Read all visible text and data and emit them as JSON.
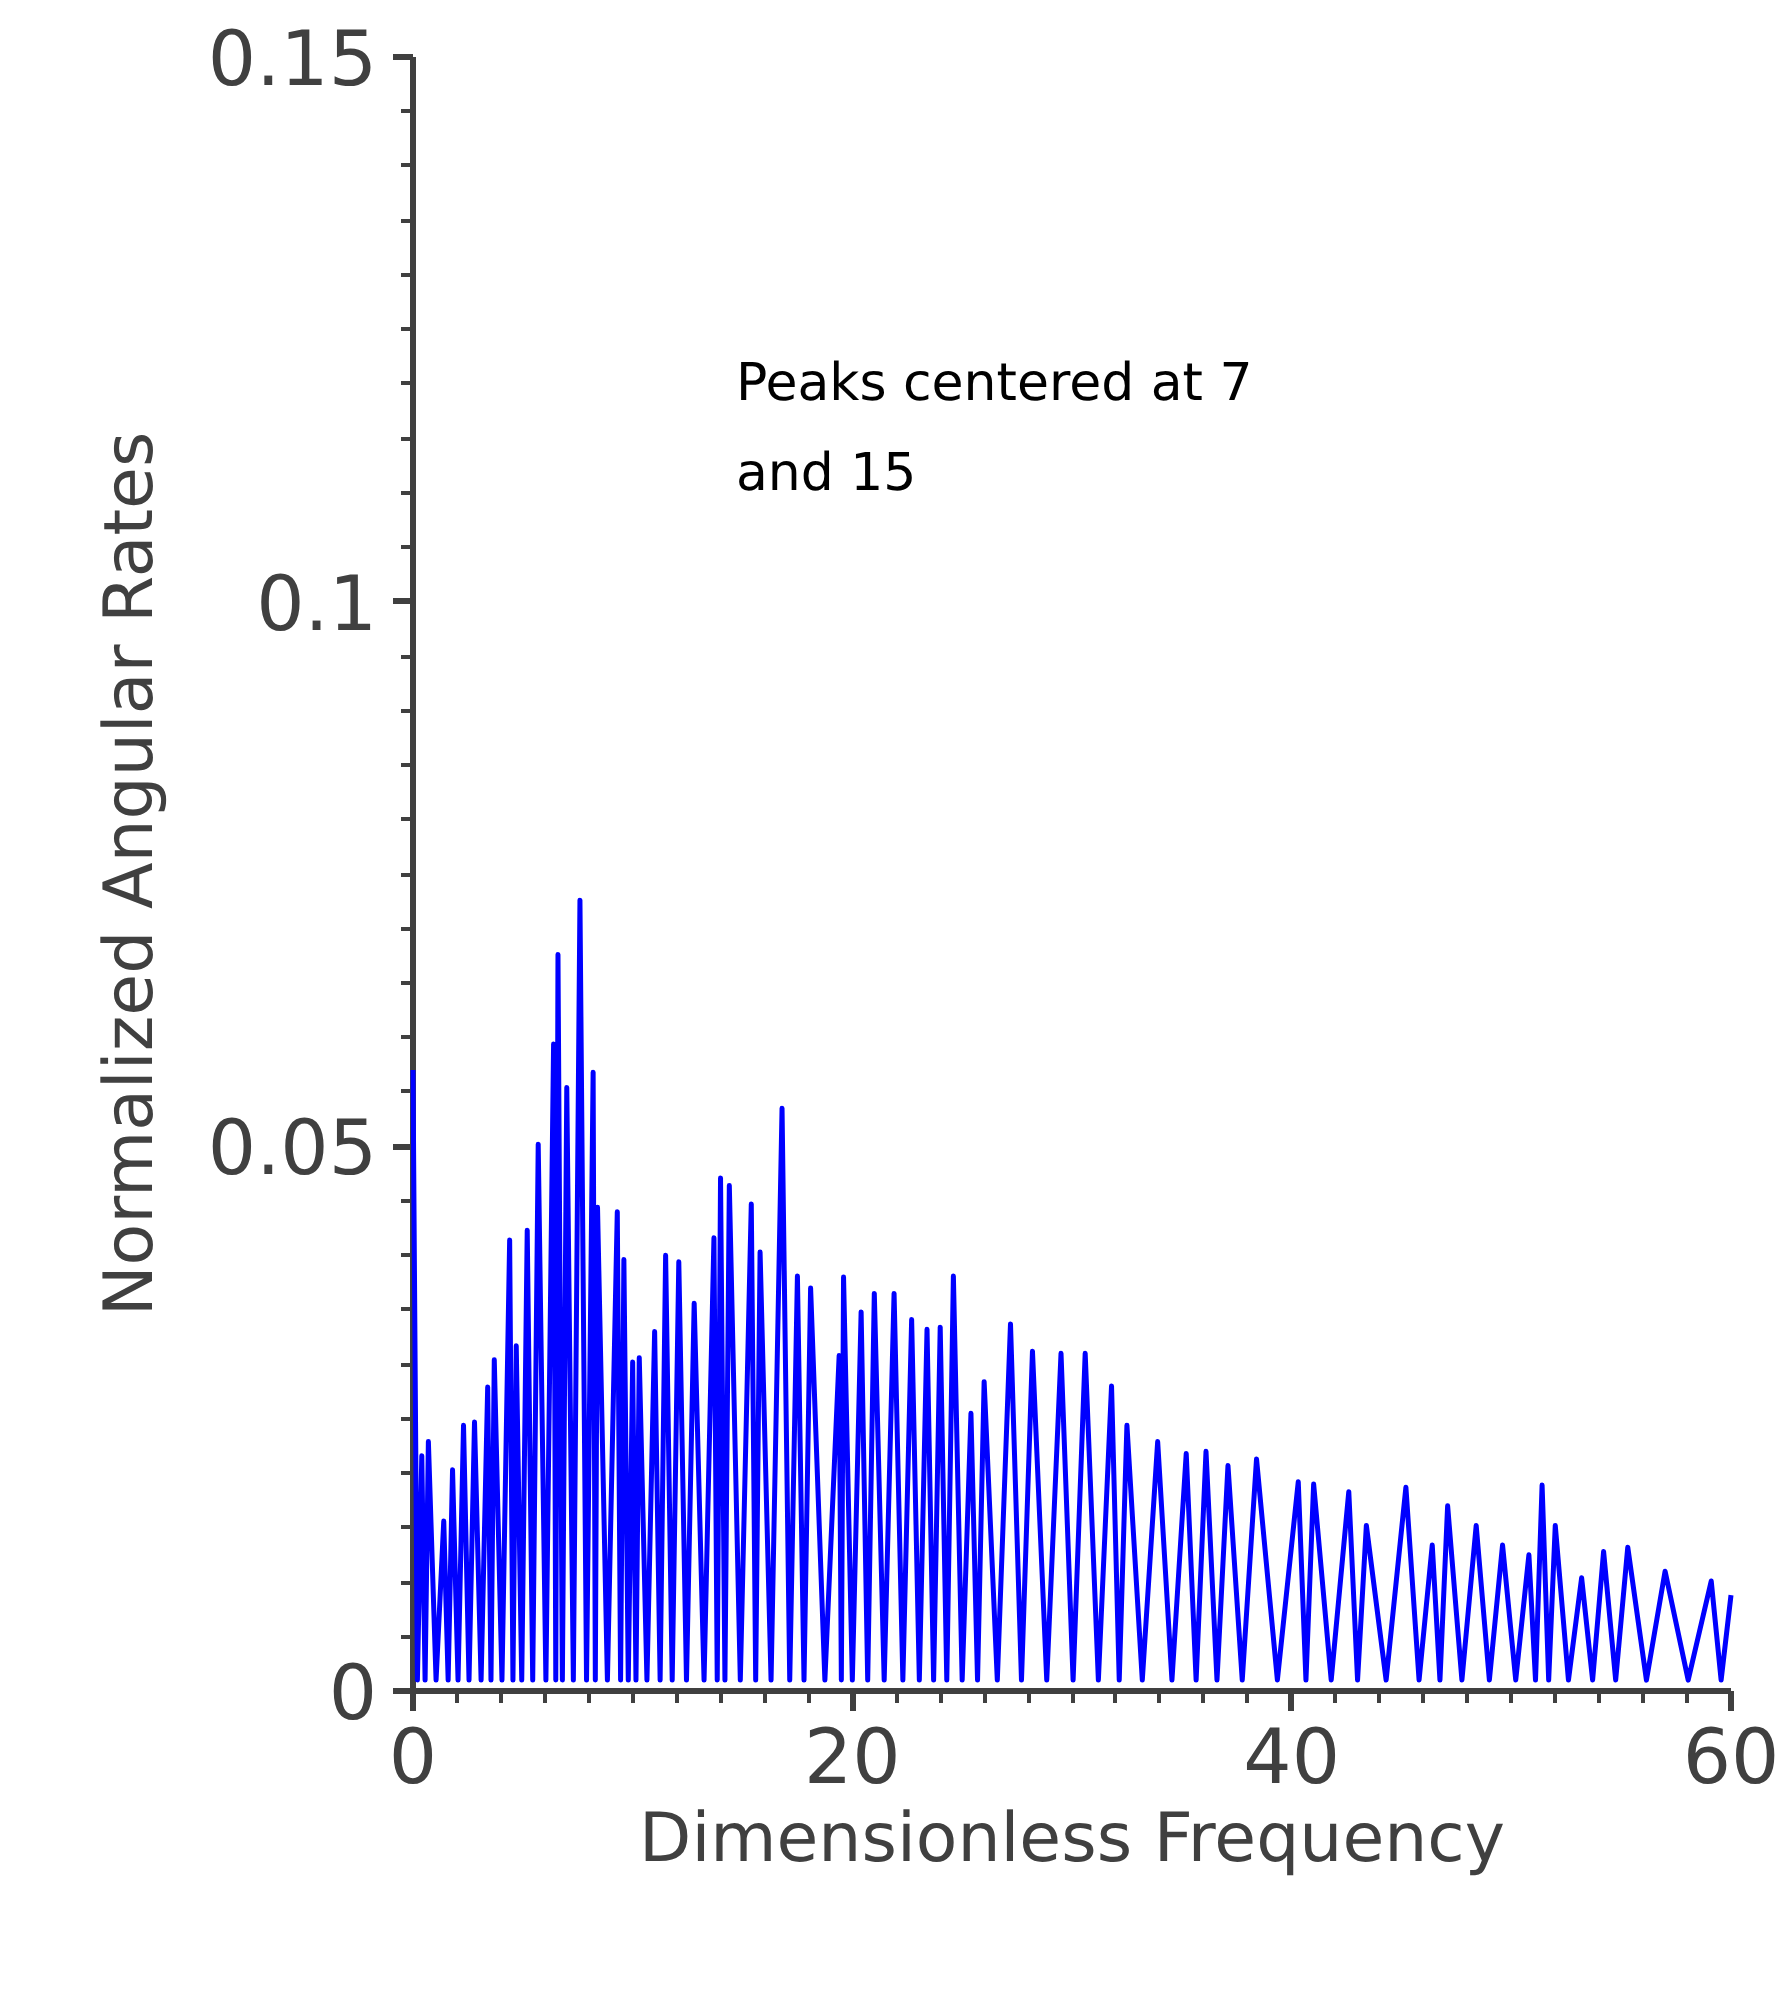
{
  "chart_data": {
    "type": "line",
    "xlabel": "Dimensionless Frequency",
    "ylabel": "Normalized Angular Rates",
    "annotations": [
      "Peaks centered at 7 and 15"
    ],
    "xlim": [
      0,
      60
    ],
    "xticks": [
      0,
      20,
      40,
      60
    ],
    "ylim": [
      0,
      0.15
    ],
    "yticks": [
      0,
      0.05,
      {
        "value": 0.1,
        "label": "0.1"
      },
      0.15
    ],
    "grid": false,
    "marker": "none",
    "line_style": "solid",
    "x": [
      0,
      0.2,
      0.4,
      0.55,
      0.7,
      1.05,
      1.4,
      1.6,
      1.8,
      2.05,
      2.3,
      2.55,
      2.8,
      3.1,
      3.4,
      3.55,
      3.7,
      4.05,
      4.4,
      4.55,
      4.7,
      4.95,
      5.2,
      5.45,
      5.7,
      6.05,
      6.4,
      6.5,
      6.6,
      6.8,
      7.0,
      7.3,
      7.6,
      7.9,
      8.2,
      8.3,
      8.4,
      8.85,
      9.3,
      9.45,
      9.6,
      9.8,
      10.0,
      10.15,
      10.3,
      10.65,
      11.0,
      11.25,
      11.5,
      11.8,
      12.1,
      12.45,
      12.8,
      13.25,
      13.7,
      13.85,
      14.0,
      14.2,
      14.4,
      14.9,
      15.4,
      15.6,
      15.8,
      16.3,
      16.8,
      17.15,
      17.5,
      17.8,
      18.1,
      18.75,
      19.4,
      19.5,
      19.6,
      20.0,
      20.4,
      20.7,
      21.0,
      21.45,
      21.9,
      22.3,
      22.7,
      23.05,
      23.4,
      23.7,
      24.0,
      24.3,
      24.6,
      25.0,
      25.4,
      25.7,
      26.0,
      26.6,
      27.2,
      27.7,
      28.2,
      28.85,
      29.5,
      30.05,
      30.6,
      31.2,
      31.8,
      32.15,
      32.5,
      33.2,
      33.9,
      34.55,
      35.2,
      35.65,
      36.1,
      36.6,
      37.1,
      37.75,
      38.4,
      39.35,
      40.3,
      40.65,
      41.0,
      41.8,
      42.6,
      43.0,
      43.4,
      44.3,
      45.2,
      45.8,
      46.4,
      46.75,
      47.1,
      47.75,
      48.4,
      49.0,
      49.6,
      50.2,
      50.8,
      51.1,
      51.4,
      51.7,
      52.0,
      52.6,
      53.2,
      53.7,
      54.2,
      54.75,
      55.3,
      56.15,
      57.0,
      58.05,
      59.1,
      59.55,
      60.0
    ],
    "series": [
      {
        "color": "#0000ff",
        "values": [
          0.057,
          0.001,
          0.0216,
          0.001,
          0.0229,
          0.001,
          0.0156,
          0.001,
          0.0203,
          0.001,
          0.0244,
          0.001,
          0.0247,
          0.001,
          0.0279,
          0.001,
          0.0304,
          0.001,
          0.0414,
          0.001,
          0.0317,
          0.001,
          0.0423,
          0.001,
          0.0502,
          0.001,
          0.0594,
          0.001,
          0.0676,
          0.001,
          0.0554,
          0.001,
          0.0726,
          0.001,
          0.0568,
          0.001,
          0.0444,
          0.001,
          0.044,
          0.001,
          0.0396,
          0.001,
          0.0302,
          0.001,
          0.0306,
          0.001,
          0.033,
          0.001,
          0.04,
          0.001,
          0.0394,
          0.001,
          0.0356,
          0.001,
          0.0416,
          0.001,
          0.0471,
          0.001,
          0.0464,
          0.001,
          0.0447,
          0.001,
          0.0403,
          0.001,
          0.0535,
          0.001,
          0.0381,
          0.001,
          0.037,
          0.001,
          0.0308,
          0.001,
          0.038,
          0.001,
          0.0348,
          0.001,
          0.0365,
          0.001,
          0.0365,
          0.001,
          0.0341,
          0.001,
          0.0332,
          0.001,
          0.0334,
          0.001,
          0.0381,
          0.001,
          0.0255,
          0.001,
          0.0284,
          0.001,
          0.0337,
          0.001,
          0.0312,
          0.001,
          0.031,
          0.001,
          0.031,
          0.001,
          0.028,
          0.001,
          0.0244,
          0.001,
          0.0229,
          0.001,
          0.0218,
          0.001,
          0.022,
          0.001,
          0.0207,
          0.001,
          0.0213,
          0.001,
          0.0192,
          0.001,
          0.019,
          0.001,
          0.0183,
          0.001,
          0.0152,
          0.001,
          0.0187,
          0.001,
          0.0134,
          0.001,
          0.017,
          0.001,
          0.0152,
          0.001,
          0.0134,
          0.001,
          0.0125,
          0.001,
          0.0189,
          0.001,
          0.0152,
          0.001,
          0.0104,
          0.001,
          0.0128,
          0.001,
          0.0132,
          0.001,
          0.011,
          0.001,
          0.0101,
          0.001,
          0.0088
        ]
      }
    ]
  }
}
